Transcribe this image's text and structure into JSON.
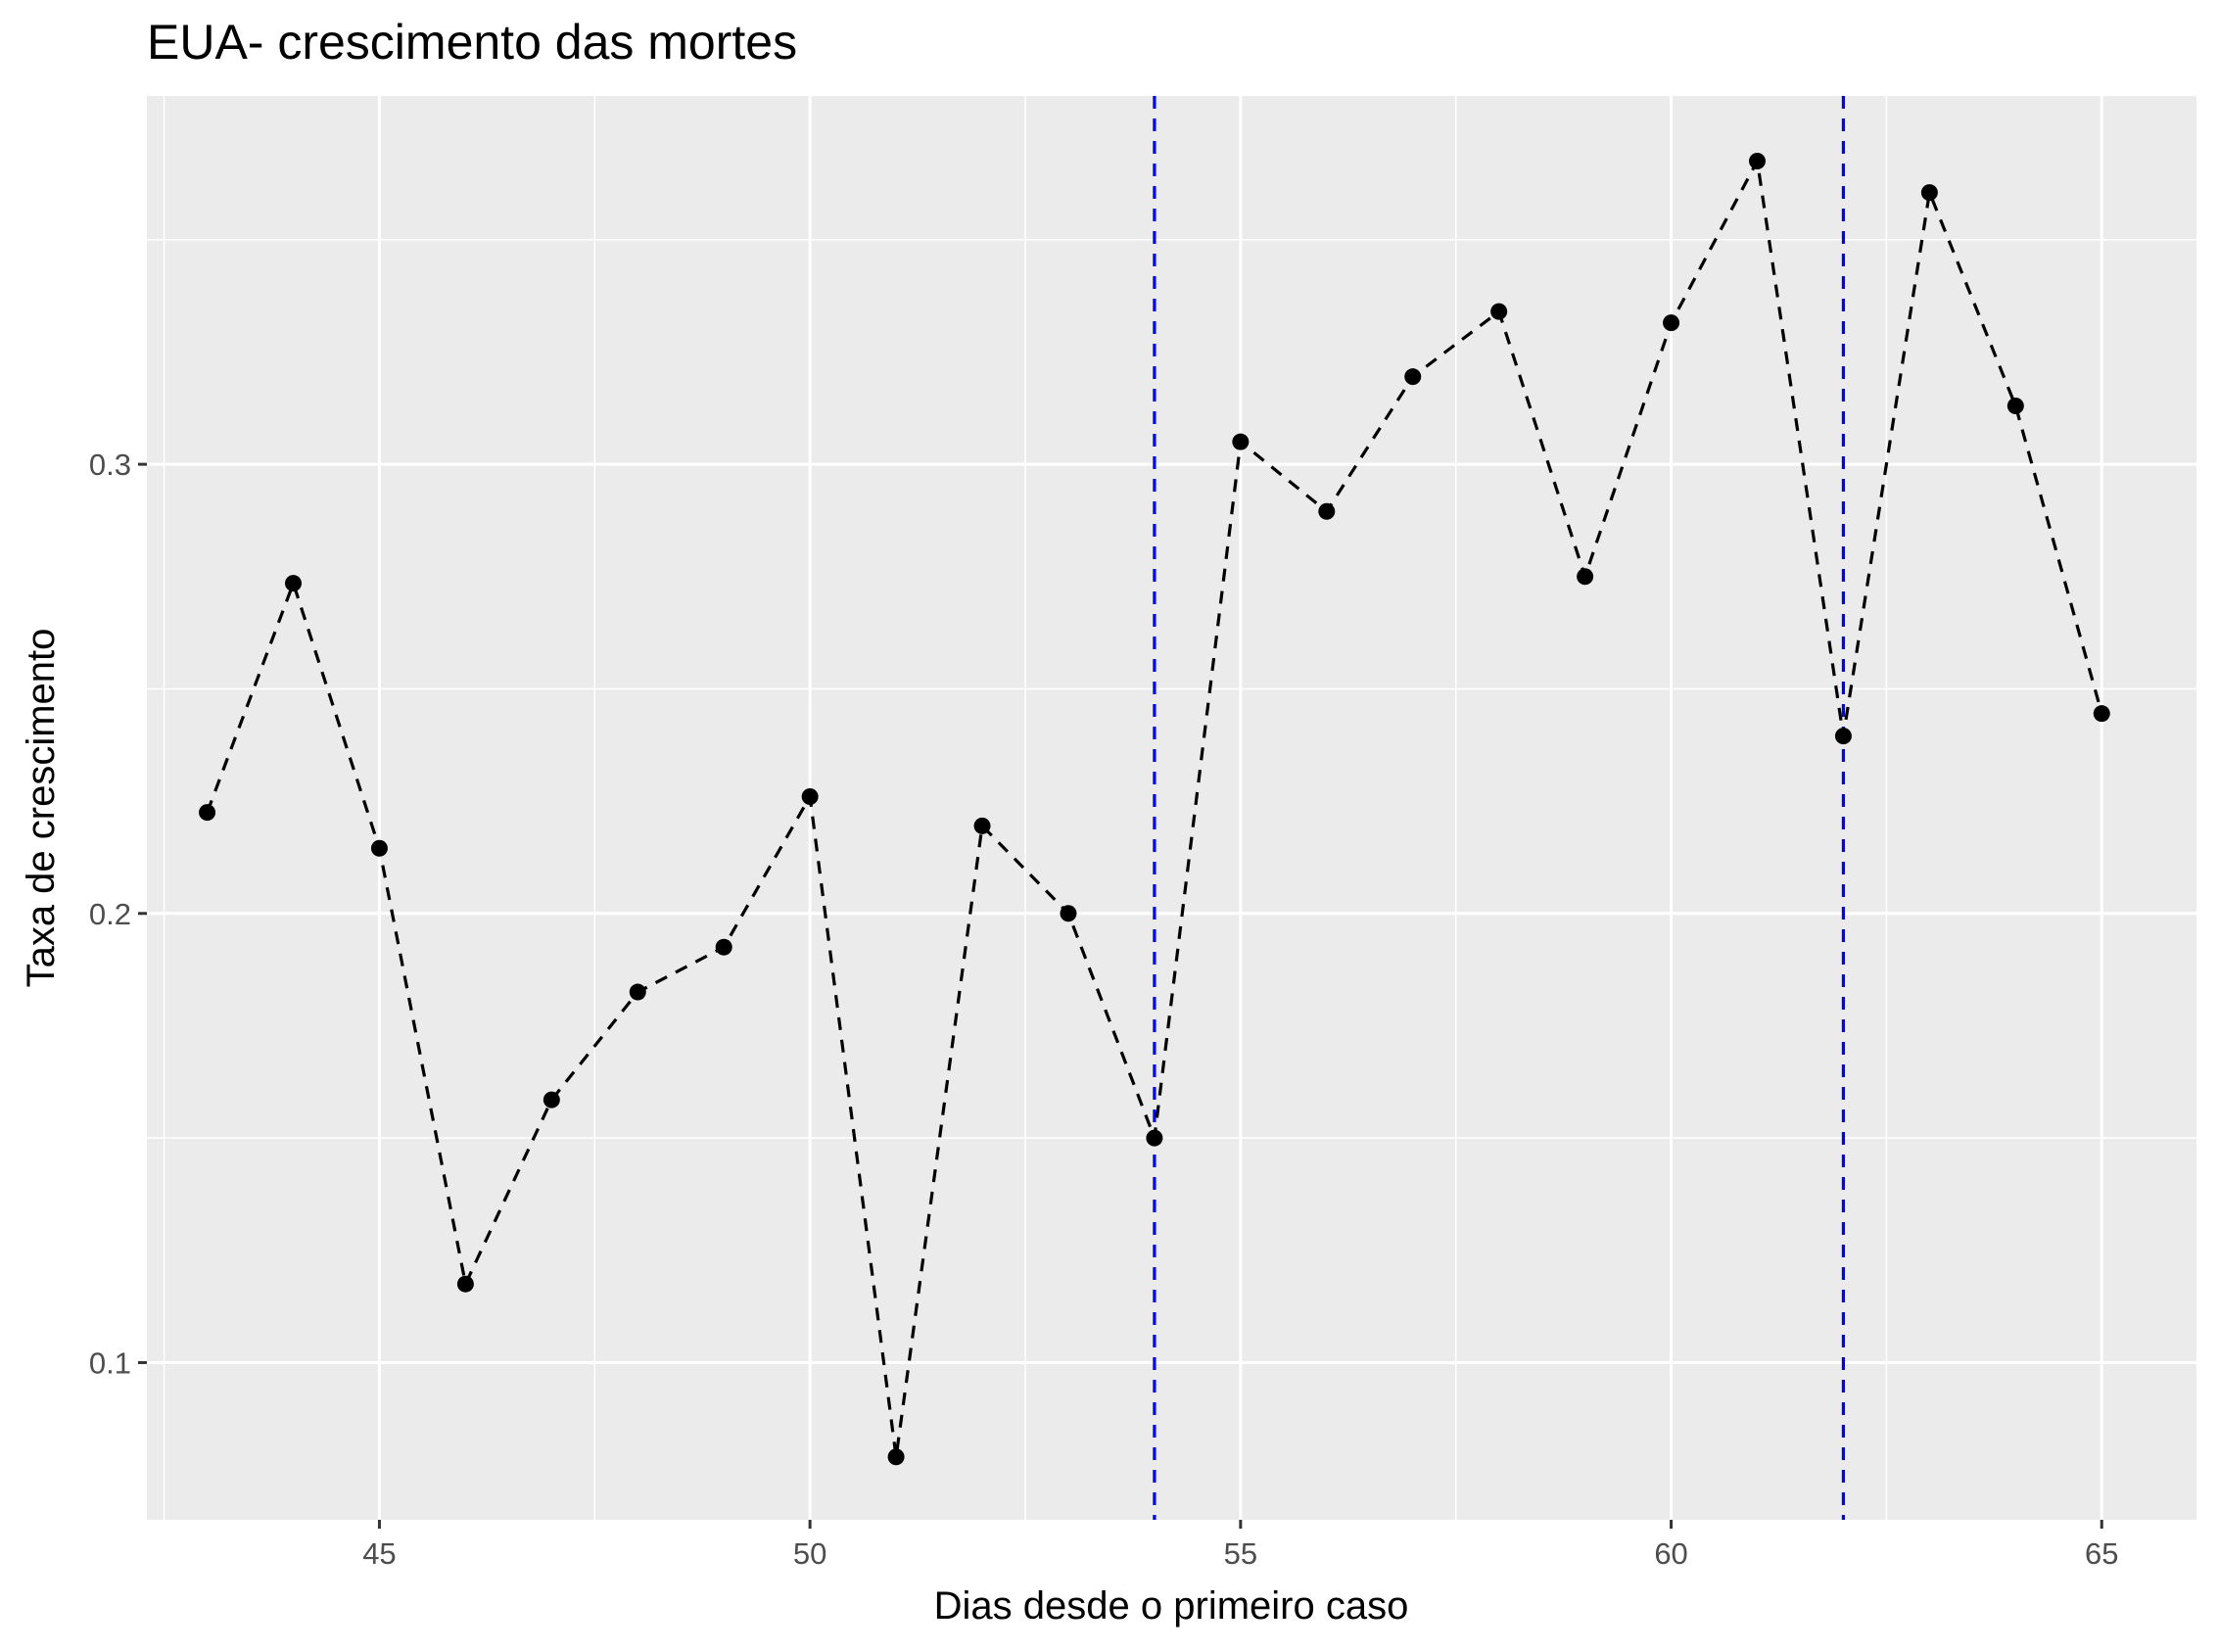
{
  "chart_data": {
    "type": "line",
    "title": "EUA- crescimento das mortes",
    "xlabel": "Dias desde o primeiro caso",
    "ylabel": "Taxa de crescimento",
    "xlim": [
      42.3,
      66.1
    ],
    "ylim": [
      0.065,
      0.382
    ],
    "x_ticks": [
      45,
      50,
      55,
      60,
      65
    ],
    "x_tick_labels": [
      "45",
      "50",
      "55",
      "60",
      "65"
    ],
    "y_ticks": [
      0.1,
      0.2,
      0.3
    ],
    "y_tick_labels": [
      "0.1",
      "0.2",
      "0.3"
    ],
    "grid": true,
    "line_style": "dashed",
    "series": [
      {
        "x": [
          43,
          44,
          45,
          46,
          47,
          48,
          49,
          50,
          51,
          52,
          53,
          54,
          55,
          56,
          57,
          58,
          59,
          60,
          61,
          62,
          63,
          64,
          65
        ],
        "values": [
          0.2225,
          0.2735,
          0.2145,
          0.1175,
          0.1585,
          0.1825,
          0.1925,
          0.226,
          0.079,
          0.2195,
          0.2,
          0.15,
          0.305,
          0.2895,
          0.3195,
          0.334,
          0.275,
          0.3315,
          0.3675,
          0.2395,
          0.3605,
          0.313,
          0.2445
        ],
        "color": "#000000"
      }
    ],
    "vlines": [
      {
        "x": 54,
        "color": "#0000ff",
        "style": "dashed"
      },
      {
        "x": 62,
        "color": "#0000ff",
        "style": "dashed"
      }
    ],
    "panel_color": "#ebebeb",
    "grid_color": "#ffffff"
  }
}
